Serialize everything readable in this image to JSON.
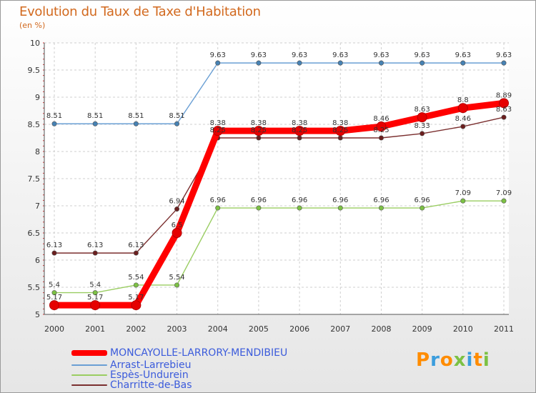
{
  "chart_data": {
    "type": "line",
    "title": "Evolution du Taux de Taxe d'Habitation",
    "ylabel": "(en %)",
    "xlabel": "",
    "ylim": [
      5,
      10
    ],
    "yticks": [
      "5",
      "5.5",
      "6",
      "6.5",
      "7",
      "7.5",
      "8",
      "8.5",
      "9",
      "9.5",
      "10"
    ],
    "categories": [
      "2000",
      "2001",
      "2002",
      "2003",
      "2004",
      "2005",
      "2006",
      "2007",
      "2008",
      "2009",
      "2010",
      "2011"
    ],
    "grid": true,
    "series": [
      {
        "name": "Arrast-Larrebieu",
        "color": "#6a9fd4",
        "marker_color": "#4682b4",
        "values": [
          8.51,
          8.51,
          8.51,
          8.51,
          9.63,
          9.63,
          9.63,
          9.63,
          9.63,
          9.63,
          9.63,
          9.63
        ],
        "labels": [
          "8.51",
          "8.51",
          "8.51",
          "8.51",
          "9.63",
          "9.63",
          "9.63",
          "9.63",
          "9.63",
          "9.63",
          "9.63",
          "9.63"
        ]
      },
      {
        "name": "Espès-Undurein",
        "color": "#9acd62",
        "marker_color": "#7cc144",
        "values": [
          5.4,
          5.4,
          5.54,
          5.54,
          6.96,
          6.96,
          6.96,
          6.96,
          6.96,
          6.96,
          7.09,
          7.09
        ],
        "labels": [
          "5.4",
          "5.4",
          "5.54",
          "5.54",
          "6.96",
          "6.96",
          "6.96",
          "6.96",
          "6.96",
          "6.96",
          "7.09",
          "7.09"
        ]
      },
      {
        "name": "Charritte-de-Bas",
        "color": "#7b2f2f",
        "marker_color": "#6b1e1e",
        "values": [
          6.13,
          6.13,
          6.13,
          6.94,
          8.25,
          8.25,
          8.25,
          8.25,
          8.25,
          8.33,
          8.46,
          8.63
        ],
        "labels": [
          "6.13",
          "6.13",
          "6.13",
          "6.94",
          "8.25",
          "8.25",
          "8.25",
          "8.25",
          "8.25",
          "8.33",
          "8.46",
          "8.63"
        ]
      },
      {
        "name": "MONCAYOLLE-LARRORY-MENDIBIEU",
        "color": "#ff0000",
        "marker_color": "#e60000",
        "values": [
          5.17,
          5.17,
          5.17,
          6.5,
          8.38,
          8.38,
          8.38,
          8.38,
          8.46,
          8.63,
          8.8,
          8.89
        ],
        "labels": [
          "5.17",
          "5.17",
          "5.17",
          "6.5",
          "8.38",
          "8.38",
          "8.38",
          "8.38",
          "8.46",
          "8.63",
          "8.8",
          "8.89"
        ]
      }
    ]
  },
  "legend": {
    "items": [
      {
        "label": "MONCAYOLLE-LARRORY-MENDIBIEU",
        "color": "#ff0000"
      },
      {
        "label": "Arrast-Larrebieu",
        "color": "#6a9fd4"
      },
      {
        "label": "Espès-Undurein",
        "color": "#9acd62"
      },
      {
        "label": "Charritte-de-Bas",
        "color": "#7b2f2f"
      }
    ]
  },
  "branding": {
    "logo_text": "Proxiti",
    "logo_colors": [
      "#ff8c00",
      "#3b9ddd",
      "#ff8c00",
      "#7cc144",
      "#3b9ddd",
      "#ff8c00",
      "#7cc144"
    ]
  }
}
